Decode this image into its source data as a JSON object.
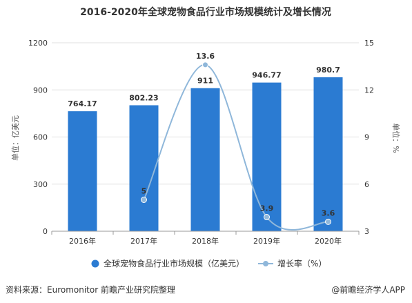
{
  "title": "2016-2020年全球宠物食品行业市场规模统计及增长情况",
  "source_label": "资料来源：Euromonitor 前瞻产业研究院整理",
  "credit_label": "@前瞻经济学人APP",
  "colors": {
    "bar": "#2b7bd2",
    "line": "#8fb7da",
    "text": "#333333",
    "grid": "#e0e0e0"
  },
  "chart_data": {
    "type": "bar",
    "title": "2016-2020年全球宠物食品行业市场规模统计及增长情况",
    "categories": [
      "2016年",
      "2017年",
      "2018年",
      "2019年",
      "2020年"
    ],
    "ylabel": "单位：亿美元",
    "ylabel_right": "单位：%",
    "ylim": [
      0,
      1200
    ],
    "yticks": [
      0,
      300,
      600,
      900,
      1200
    ],
    "ylim_right": [
      3,
      15
    ],
    "yticks_right": [
      3,
      6,
      9,
      12,
      15
    ],
    "grid": true,
    "legend_position": "bottom",
    "series": [
      {
        "name": "全球宠物食品行业市场规模（亿美元）",
        "type": "bar",
        "axis": "left",
        "values": [
          764.17,
          802.23,
          911,
          946.77,
          980.7
        ],
        "labels": [
          "764.17",
          "802.23",
          "911",
          "946.77",
          "980.7"
        ]
      },
      {
        "name": "增长率（%）",
        "type": "line",
        "axis": "right",
        "values": [
          null,
          5,
          13.6,
          3.9,
          3.6
        ],
        "labels": [
          "",
          "5",
          "13.6",
          "3.9",
          "3.6"
        ]
      }
    ]
  }
}
